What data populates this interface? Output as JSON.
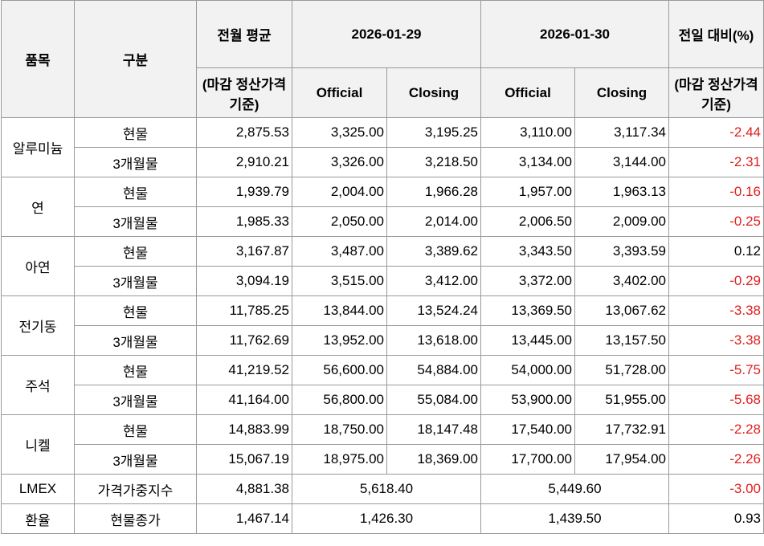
{
  "table": {
    "header": {
      "item": "품목",
      "type": "구분",
      "prev_avg": "전월 평균",
      "prev_avg_basis": "(마감 정산가격 기준)",
      "dates": [
        "2026-01-29",
        "2026-01-30"
      ],
      "sub": [
        "Official",
        "Closing",
        "Official",
        "Closing"
      ],
      "change": "전일 대비(%)",
      "change_basis": "(마감 정산가격 기준)"
    },
    "groups": [
      {
        "name": "알루미늄",
        "rows": [
          {
            "type": "현물",
            "values": [
              "2,875.53",
              "3,325.00",
              "3,195.25",
              "3,110.00",
              "3,117.34",
              "-2.44"
            ]
          },
          {
            "type": "3개월물",
            "values": [
              "2,910.21",
              "3,326.00",
              "3,218.50",
              "3,134.00",
              "3,144.00",
              "-2.31"
            ]
          }
        ]
      },
      {
        "name": "연",
        "rows": [
          {
            "type": "현물",
            "values": [
              "1,939.79",
              "2,004.00",
              "1,966.28",
              "1,957.00",
              "1,963.13",
              "-0.16"
            ]
          },
          {
            "type": "3개월물",
            "values": [
              "1,985.33",
              "2,050.00",
              "2,014.00",
              "2,006.50",
              "2,009.00",
              "-0.25"
            ]
          }
        ]
      },
      {
        "name": "아연",
        "rows": [
          {
            "type": "현물",
            "values": [
              "3,167.87",
              "3,487.00",
              "3,389.62",
              "3,343.50",
              "3,393.59",
              "0.12"
            ]
          },
          {
            "type": "3개월물",
            "values": [
              "3,094.19",
              "3,515.00",
              "3,412.00",
              "3,372.00",
              "3,402.00",
              "-0.29"
            ]
          }
        ]
      },
      {
        "name": "전기동",
        "rows": [
          {
            "type": "현물",
            "values": [
              "11,785.25",
              "13,844.00",
              "13,524.24",
              "13,369.50",
              "13,067.62",
              "-3.38"
            ]
          },
          {
            "type": "3개월물",
            "values": [
              "11,762.69",
              "13,952.00",
              "13,618.00",
              "13,445.00",
              "13,157.50",
              "-3.38"
            ]
          }
        ]
      },
      {
        "name": "주석",
        "rows": [
          {
            "type": "현물",
            "values": [
              "41,219.52",
              "56,600.00",
              "54,884.00",
              "54,000.00",
              "51,728.00",
              "-5.75"
            ]
          },
          {
            "type": "3개월물",
            "values": [
              "41,164.00",
              "56,800.00",
              "55,084.00",
              "53,900.00",
              "51,955.00",
              "-5.68"
            ]
          }
        ]
      },
      {
        "name": "니켈",
        "rows": [
          {
            "type": "현물",
            "values": [
              "14,883.99",
              "18,750.00",
              "18,147.48",
              "17,540.00",
              "17,732.91",
              "-2.28"
            ]
          },
          {
            "type": "3개월물",
            "values": [
              "15,067.19",
              "18,975.00",
              "18,369.00",
              "17,700.00",
              "17,954.00",
              "-2.26"
            ]
          }
        ]
      },
      {
        "name": "LMEX",
        "rows": [
          {
            "type": "가격가중지수",
            "values": [
              "4,881.38",
              "5,618.40",
              "5,449.60",
              "-3.00"
            ]
          }
        ]
      },
      {
        "name": "환율",
        "rows": [
          {
            "type": "현물종가",
            "values": [
              "1,467.14",
              "1,426.30",
              "1,439.50",
              "0.93"
            ]
          }
        ]
      }
    ]
  }
}
